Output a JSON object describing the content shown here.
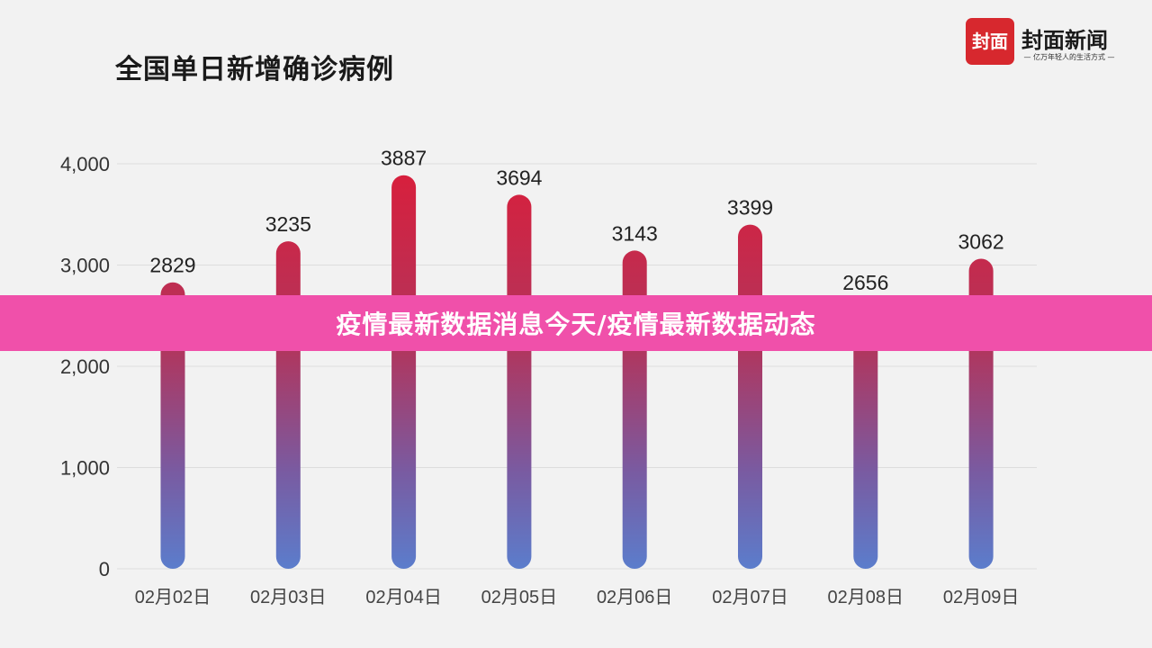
{
  "chart_title": "全国单日新增确诊病例",
  "logo": {
    "badge_text": "封面",
    "name": "封面新闻",
    "slogan": "— 亿万年轻人的生活方式 —"
  },
  "banner": {
    "text": "疫情最新数据消息今天/疫情最新数据动态"
  },
  "colors": {
    "bar_top": "#d81f3c",
    "bar_bottom": "#5b7dcc",
    "banner": "#f050aa",
    "grid": "#dddddd"
  },
  "chart_data": {
    "type": "bar",
    "title": "全国单日新增确诊病例",
    "categories": [
      "02月02日",
      "02月03日",
      "02月04日",
      "02月05日",
      "02月06日",
      "02月07日",
      "02月08日",
      "02月09日"
    ],
    "values": [
      2829,
      3235,
      3887,
      3694,
      3143,
      3399,
      2656,
      3062
    ],
    "ylim": [
      0,
      4000
    ],
    "yticks": [
      0,
      1000,
      2000,
      3000,
      4000
    ],
    "ytick_labels": [
      "0",
      "1,000",
      "2,000",
      "3,000",
      "4,000"
    ],
    "grid": true,
    "legend": "none"
  }
}
